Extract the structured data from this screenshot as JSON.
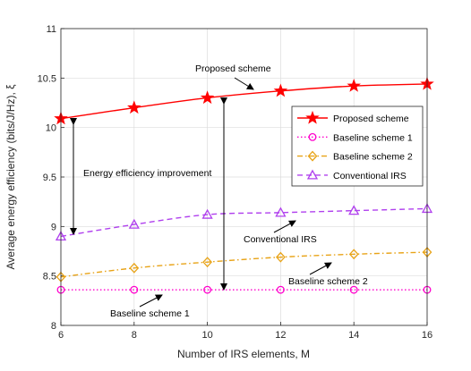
{
  "chart_data": {
    "type": "line",
    "xlabel": "Number of IRS elements, M",
    "ylabel": "Average energy efficiency (bits/J/Hz), ξ",
    "xlim": [
      6,
      16
    ],
    "ylim": [
      8,
      11
    ],
    "xticks": [
      6,
      8,
      10,
      12,
      14,
      16
    ],
    "yticks": [
      8,
      8.5,
      9,
      9.5,
      10,
      10.5,
      11
    ],
    "grid": true,
    "legend_position": "right",
    "series": [
      {
        "name": "Proposed scheme",
        "color": "#ff0000",
        "marker": "star",
        "dash": "solid",
        "x": [
          6,
          8,
          10,
          12,
          14,
          16
        ],
        "y": [
          10.09,
          10.2,
          10.3,
          10.37,
          10.42,
          10.44
        ]
      },
      {
        "name": "Baseline scheme 1",
        "color": "#ff00cc",
        "marker": "circle",
        "dash": "dotted",
        "x": [
          6,
          8,
          10,
          12,
          14,
          16
        ],
        "y": [
          8.36,
          8.36,
          8.36,
          8.36,
          8.36,
          8.36
        ]
      },
      {
        "name": "Baseline scheme 2",
        "color": "#e8a317",
        "marker": "diamond",
        "dash": "dashdot",
        "x": [
          6,
          8,
          10,
          12,
          14,
          16
        ],
        "y": [
          8.49,
          8.58,
          8.64,
          8.69,
          8.72,
          8.74
        ]
      },
      {
        "name": "Conventional IRS",
        "color": "#b040ee",
        "marker": "triangle",
        "dash": "dashed",
        "x": [
          6,
          8,
          10,
          12,
          14,
          16
        ],
        "y": [
          8.9,
          9.02,
          9.12,
          9.14,
          9.16,
          9.18
        ]
      }
    ],
    "annotations": [
      {
        "text": "Proposed scheme"
      },
      {
        "text": "Energy efficiency improvement"
      },
      {
        "text": "Conventional IRS"
      },
      {
        "text": "Baseline scheme 2"
      },
      {
        "text": "Baseline scheme 1"
      }
    ]
  }
}
